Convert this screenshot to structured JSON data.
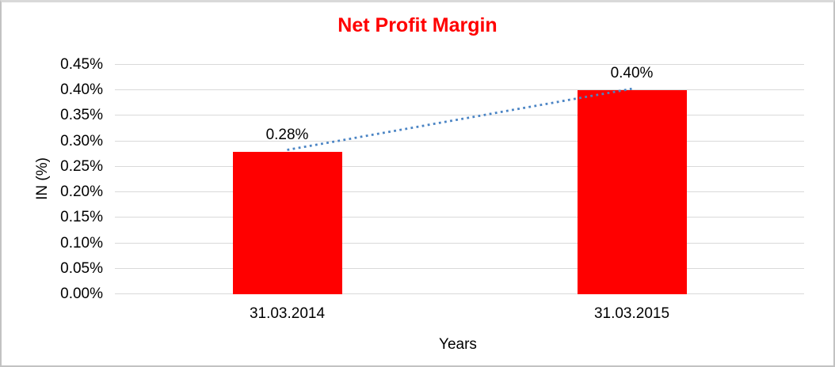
{
  "chart_data": {
    "type": "bar",
    "title": "Net Profit Margin",
    "xlabel": "Years",
    "ylabel": "IN (%)",
    "categories": [
      "31.03.2014",
      "31.03.2015"
    ],
    "values": [
      0.28,
      0.4
    ],
    "data_labels": [
      "0.28%",
      "0.40%"
    ],
    "yticks": [
      "0.00%",
      "0.05%",
      "0.10%",
      "0.15%",
      "0.20%",
      "0.25%",
      "0.30%",
      "0.35%",
      "0.40%",
      "0.45%"
    ],
    "ylim": [
      0,
      0.45
    ],
    "ytick_step": 0.05,
    "grid": "horizontal",
    "legend": "none",
    "trendline": {
      "type": "linear",
      "style": "dotted"
    },
    "colors": {
      "bar": "#ff0000",
      "title": "#ff0000",
      "gridline": "#d9d9d9",
      "axis_text": "#000000",
      "trendline": "#4a84c4",
      "background": "#ffffff",
      "frame_border": "#c2c2c2"
    }
  }
}
